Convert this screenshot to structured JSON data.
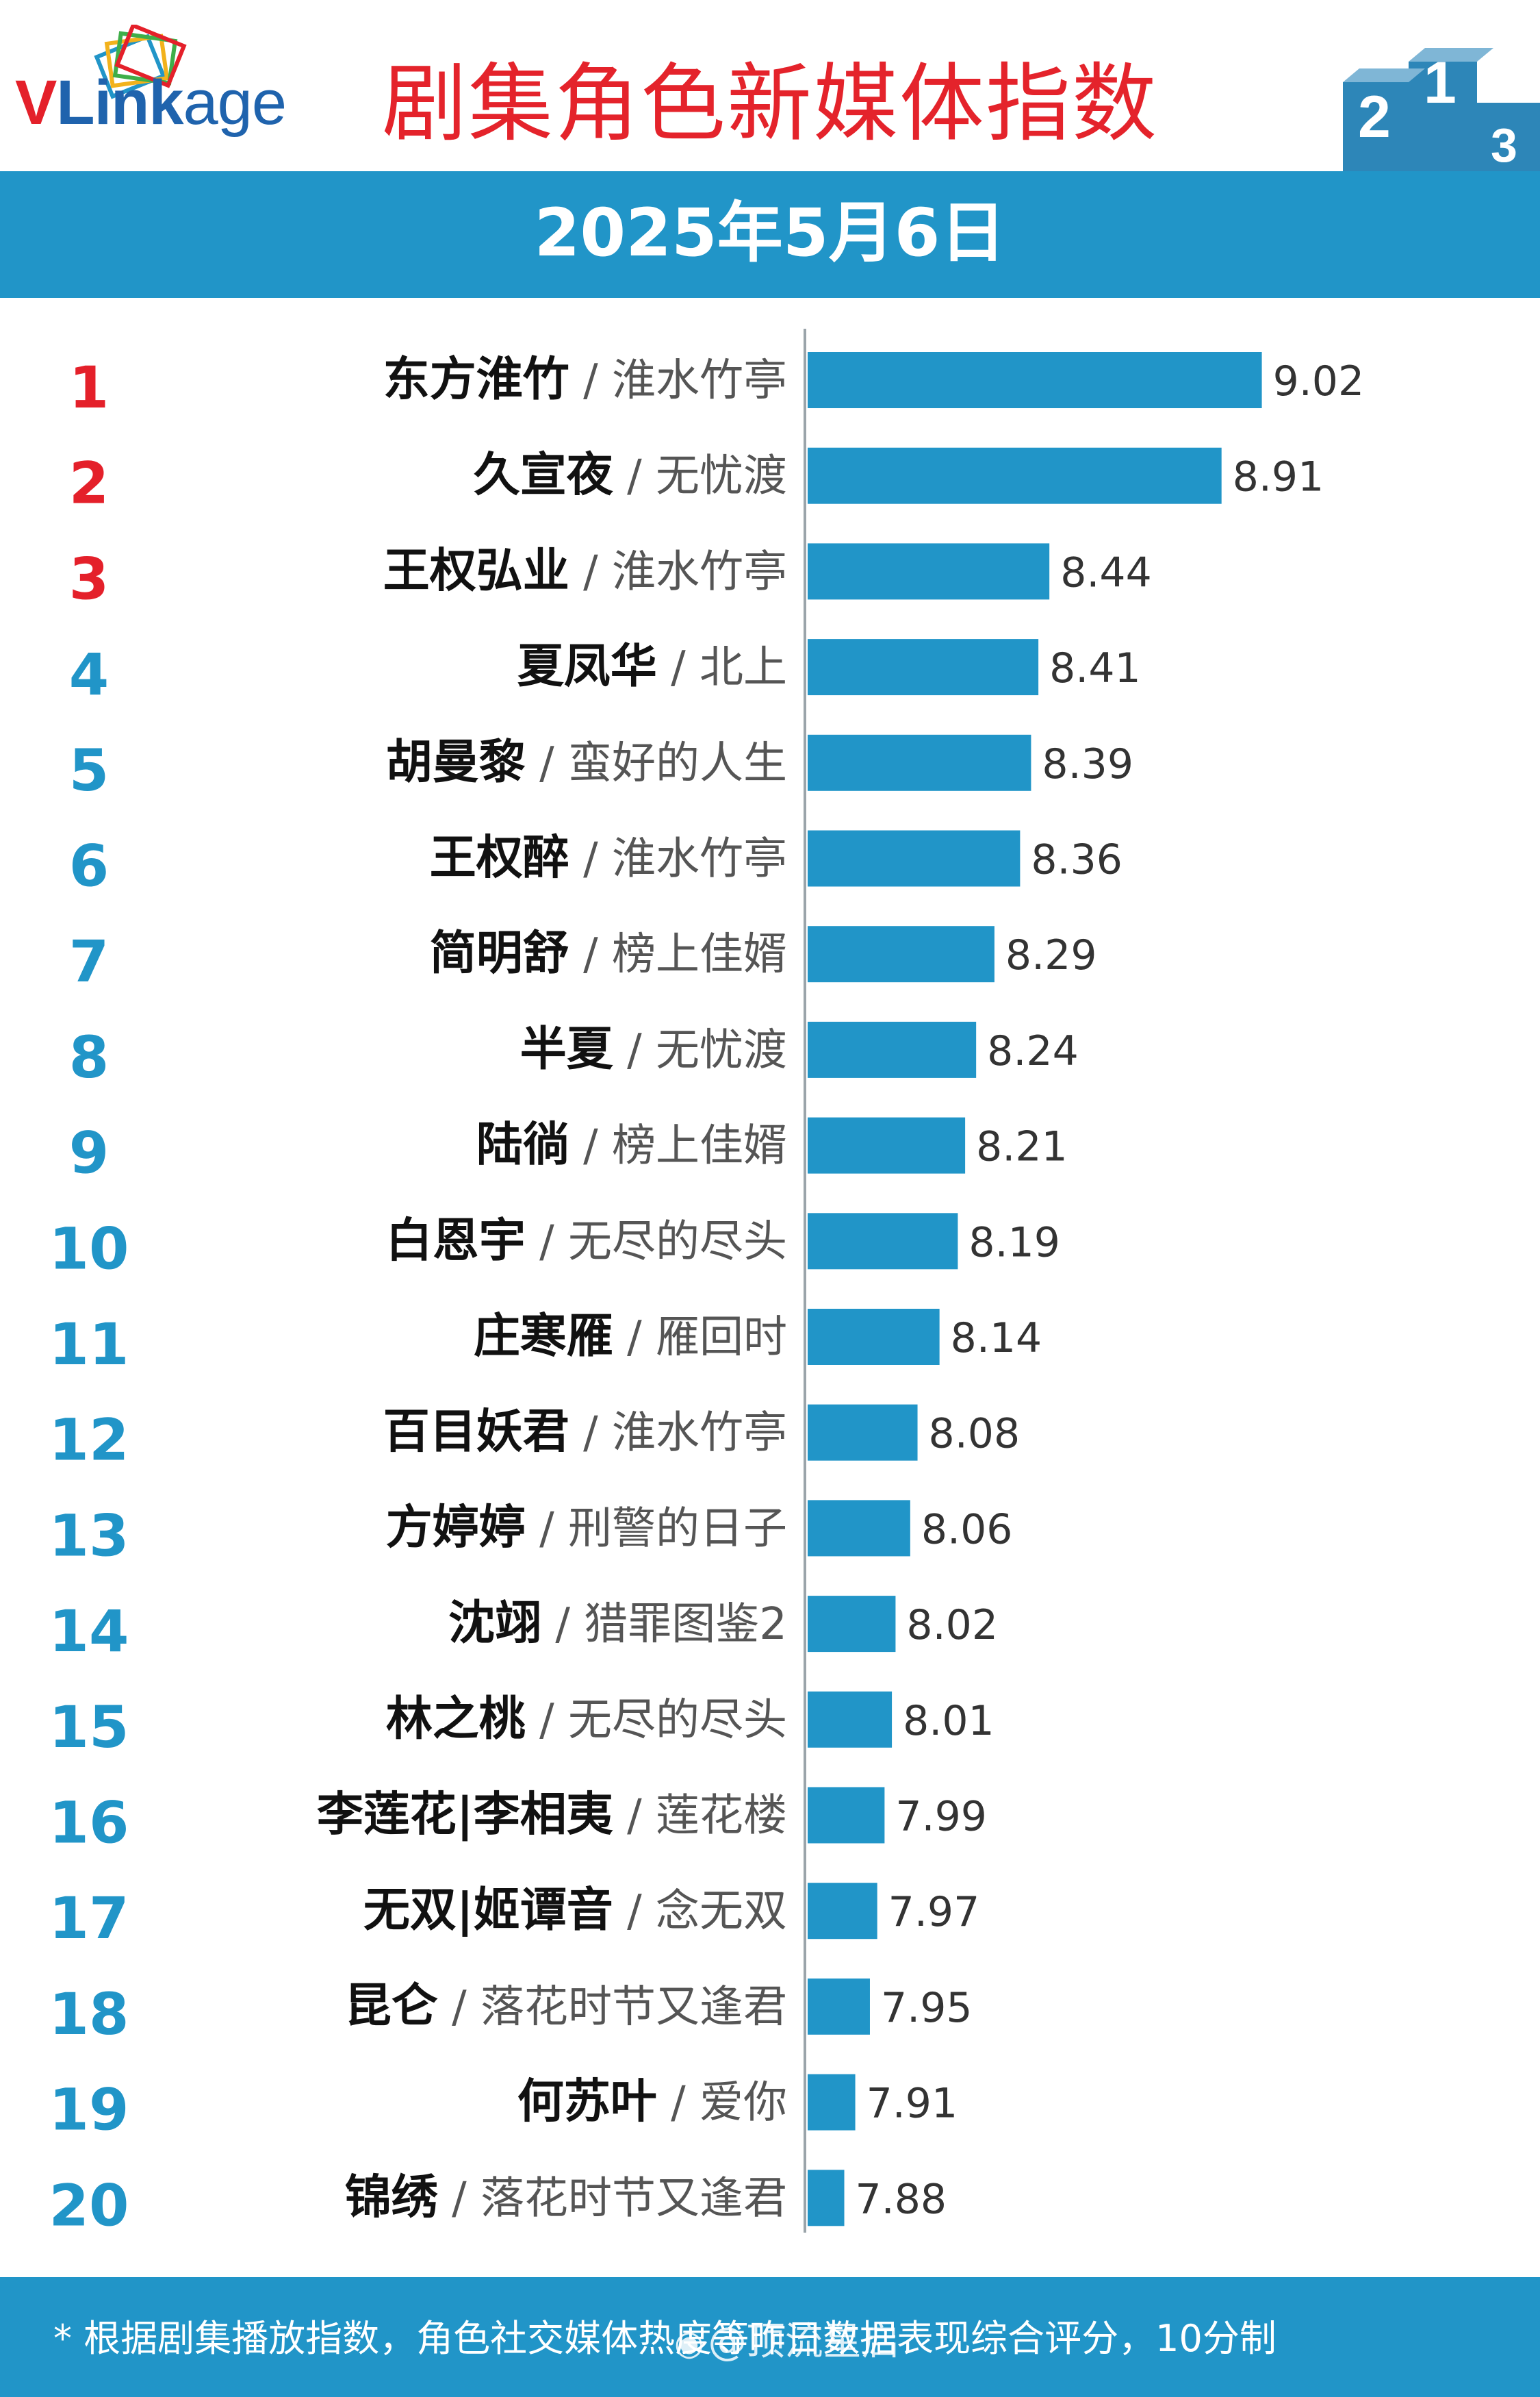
{
  "brand": {
    "logo_prefix": "V",
    "logo_main": "Link",
    "logo_suffix": "age",
    "red": "#e4202a",
    "blue": "#1f63ad"
  },
  "header": {
    "title": "剧集角色新媒体指数",
    "date": "2025年5月6日",
    "title_color": "#e4232b",
    "band_color": "#2195c8",
    "podium_icon": "podium-icon",
    "podium_labels": [
      "2",
      "1",
      "3"
    ]
  },
  "chart_data": {
    "type": "bar",
    "orientation": "horizontal",
    "title": "剧集角色新媒体指数",
    "subtitle": "2025年5月6日",
    "xlabel": "",
    "ylabel": "",
    "xlim": [
      7.78,
      9.26
    ],
    "bar_color": "#2195c8",
    "top3_rank_color": "#e4202a",
    "rank_color": "#2195c8",
    "rows": [
      {
        "rank": "1",
        "character": "东方淮竹",
        "show": "淮水竹亭",
        "value": 9.02,
        "label": "9.02"
      },
      {
        "rank": "2",
        "character": "久宣夜",
        "show": "无忧渡",
        "value": 8.91,
        "label": "8.91"
      },
      {
        "rank": "3",
        "character": "王权弘业",
        "show": "淮水竹亭",
        "value": 8.44,
        "label": "8.44"
      },
      {
        "rank": "4",
        "character": "夏凤华",
        "show": "北上",
        "value": 8.41,
        "label": "8.41"
      },
      {
        "rank": "5",
        "character": "胡曼黎",
        "show": "蛮好的人生",
        "value": 8.39,
        "label": "8.39"
      },
      {
        "rank": "6",
        "character": "王权醉",
        "show": "淮水竹亭",
        "value": 8.36,
        "label": "8.36"
      },
      {
        "rank": "7",
        "character": "简明舒",
        "show": "榜上佳婿",
        "value": 8.29,
        "label": "8.29"
      },
      {
        "rank": "8",
        "character": "半夏",
        "show": "无忧渡",
        "value": 8.24,
        "label": "8.24"
      },
      {
        "rank": "9",
        "character": "陆徜",
        "show": "榜上佳婿",
        "value": 8.21,
        "label": "8.21"
      },
      {
        "rank": "10",
        "character": "白恩宇",
        "show": "无尽的尽头",
        "value": 8.19,
        "label": "8.19"
      },
      {
        "rank": "11",
        "character": "庄寒雁",
        "show": "雁回时",
        "value": 8.14,
        "label": "8.14"
      },
      {
        "rank": "12",
        "character": "百目妖君",
        "show": "淮水竹亭",
        "value": 8.08,
        "label": "8.08"
      },
      {
        "rank": "13",
        "character": "方婷婷",
        "show": "刑警的日子",
        "value": 8.06,
        "label": "8.06"
      },
      {
        "rank": "14",
        "character": "沈翊",
        "show": "猎罪图鉴2",
        "value": 8.02,
        "label": "8.02"
      },
      {
        "rank": "15",
        "character": "林之桃",
        "show": "无尽的尽头",
        "value": 8.01,
        "label": "8.01"
      },
      {
        "rank": "16",
        "character": "李莲花|李相夷",
        "show": "莲花楼",
        "value": 7.99,
        "label": "7.99"
      },
      {
        "rank": "17",
        "character": "无双|姬谭音",
        "show": "念无双",
        "value": 7.97,
        "label": "7.97"
      },
      {
        "rank": "18",
        "character": "昆仑",
        "show": "落花时节又逢君",
        "value": 7.95,
        "label": "7.95"
      },
      {
        "rank": "19",
        "character": "何苏叶",
        "show": "爱你",
        "value": 7.91,
        "label": "7.91"
      },
      {
        "rank": "20",
        "character": "锦绣",
        "show": "落花时节又逢君",
        "value": 7.88,
        "label": "7.88"
      }
    ],
    "separator": " / "
  },
  "footer": {
    "note": "* 根据剧集播放指数，角色社交媒体热度等昨日数据表现综合评分，10分制",
    "watermark": "@顶流星启",
    "watermark_icon": "weibo-icon"
  }
}
